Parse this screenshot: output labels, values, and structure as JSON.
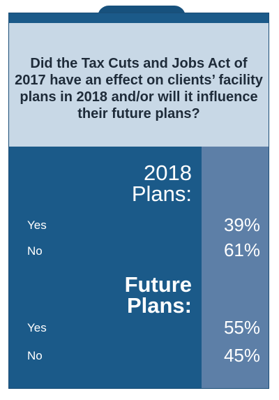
{
  "title": "Did the Tax Cuts and Jobs Act of 2017 have an effect on clients’ facility plans in 2018 and/or will it influence their future plans?",
  "sections": [
    {
      "header_line1": "2018",
      "header_line2": "Plans:",
      "rows": [
        {
          "label": "Yes",
          "value": "39%"
        },
        {
          "label": "No",
          "value": "61%"
        }
      ]
    },
    {
      "header_line1": "Future",
      "header_line2": "Plans:",
      "rows": [
        {
          "label": "Yes",
          "value": "55%"
        },
        {
          "label": "No",
          "value": "45%"
        }
      ]
    }
  ],
  "colors": {
    "card": "#1b5a89",
    "value_column": "#5d7fa7",
    "question_bg": "#c8d8e6"
  },
  "chart_data": {
    "type": "table",
    "title": "Did the Tax Cuts and Jobs Act of 2017 have an effect on clients’ facility plans in 2018 and/or will it influence their future plans?",
    "categories": [
      "Yes",
      "No"
    ],
    "series": [
      {
        "name": "2018 Plans:",
        "values": [
          39,
          61
        ]
      },
      {
        "name": "Future Plans:",
        "values": [
          55,
          45
        ]
      }
    ],
    "unit": "%"
  }
}
